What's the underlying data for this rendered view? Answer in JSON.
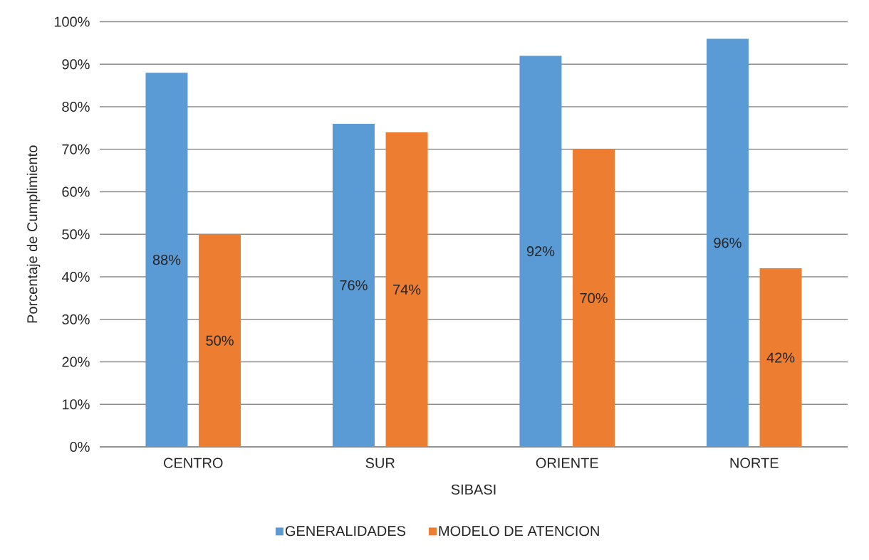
{
  "chart_data": {
    "type": "bar",
    "xlabel": "SIBASI",
    "ylabel": "Porcentaje de Cumplimiento",
    "categories": [
      "CENTRO",
      "SUR",
      "ORIENTE",
      "NORTE"
    ],
    "series": [
      {
        "name": "GENERALIDADES",
        "color": "#5b9bd5",
        "values": [
          88,
          76,
          92,
          96
        ],
        "value_labels": [
          "88%",
          "76%",
          "92%",
          "96%"
        ]
      },
      {
        "name": "MODELO DE ATENCION",
        "color": "#ed7d31",
        "values": [
          50,
          74,
          70,
          42
        ],
        "value_labels": [
          "50%",
          "74%",
          "70%",
          "42%"
        ]
      }
    ],
    "ylim": [
      0,
      100
    ],
    "yticks": [
      {
        "value": 0,
        "label": "0%"
      },
      {
        "value": 10,
        "label": "10%"
      },
      {
        "value": 20,
        "label": "20%"
      },
      {
        "value": 30,
        "label": "30%"
      },
      {
        "value": 40,
        "label": "40%"
      },
      {
        "value": 50,
        "label": "50%"
      },
      {
        "value": 60,
        "label": "60%"
      },
      {
        "value": 70,
        "label": "70%"
      },
      {
        "value": 80,
        "label": "80%"
      },
      {
        "value": 90,
        "label": "90%"
      },
      {
        "value": 100,
        "label": "100%"
      }
    ],
    "grid": "y",
    "legend": "bottom"
  }
}
